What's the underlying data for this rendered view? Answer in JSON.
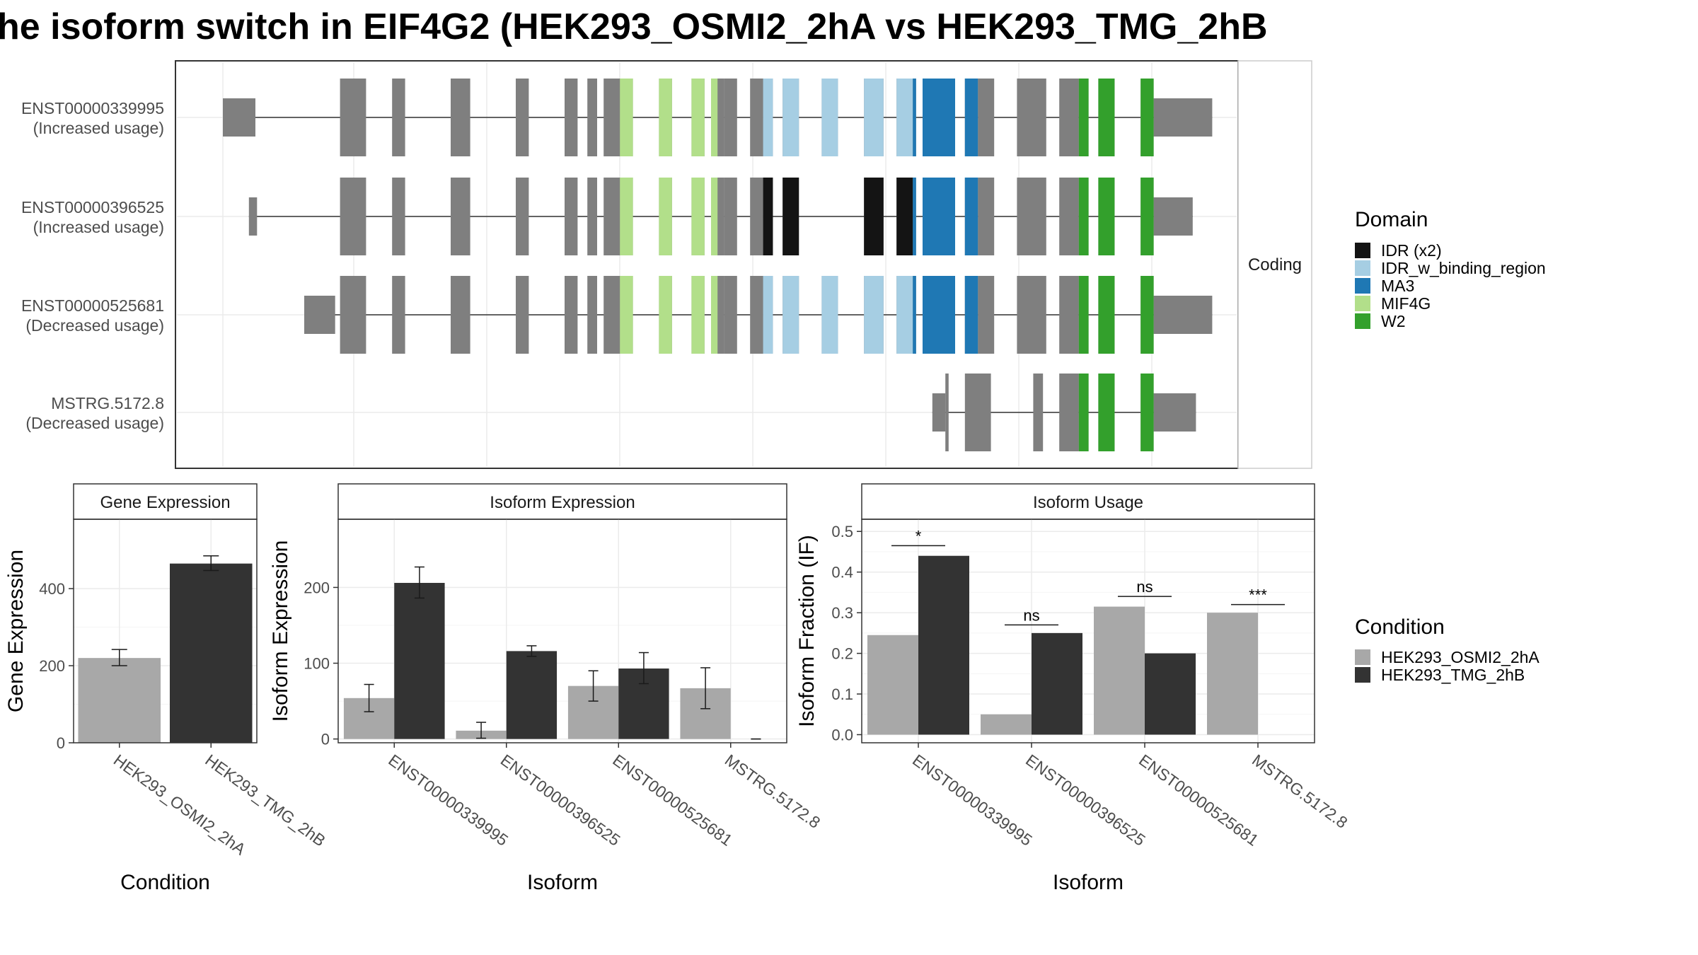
{
  "title": "he isoform switch in EIF4G2 (HEK293_OSMI2_2hA vs HEK293_TMG_2hB",
  "colors": {
    "IDR": "#141414",
    "IDR_w": "#A6CEE3",
    "MA3": "#1F78B4",
    "MIF4G": "#B2DF8A",
    "W2": "#33A02C",
    "exon": "#7F7F7F",
    "cond_A": "#A8A8A8",
    "cond_B": "#333333"
  },
  "structure": {
    "strip_label": "Coding",
    "transcripts": [
      {
        "name": "ENST00000339995",
        "usage": "(Increased usage)",
        "exons": [
          [
            0,
            1,
            "utr"
          ],
          [
            3.6,
            4.4,
            "cds"
          ],
          [
            5.2,
            5.6,
            "cds"
          ],
          [
            7,
            7.6,
            "cds"
          ],
          [
            9,
            9.4,
            "cds"
          ],
          [
            10.5,
            10.9,
            "cds"
          ],
          [
            11.2,
            11.5,
            "cds"
          ],
          [
            11.7,
            12,
            "cds"
          ],
          [
            12,
            12.6,
            "cds"
          ],
          [
            13.4,
            13.8,
            "cds"
          ],
          [
            14.4,
            14.8,
            "cds"
          ],
          [
            15,
            15.4,
            "cds"
          ],
          [
            15.4,
            15.8,
            "cds"
          ],
          [
            16.2,
            16.6,
            "cds"
          ],
          [
            16.6,
            16.9,
            "cds"
          ],
          [
            17.2,
            17.7,
            "cds"
          ],
          [
            18.4,
            18.9,
            "cds"
          ],
          [
            19.7,
            20.3,
            "cds"
          ],
          [
            20.7,
            21.2,
            "cds"
          ],
          [
            21.2,
            21.3,
            "cds"
          ],
          [
            21.5,
            22.5,
            "cds"
          ],
          [
            22.8,
            23.2,
            "cds"
          ],
          [
            23.2,
            23.7,
            "cds"
          ],
          [
            24.4,
            25.3,
            "cds"
          ],
          [
            25.7,
            26.3,
            "cds"
          ],
          [
            26.3,
            26.6,
            "cds"
          ],
          [
            26.9,
            27.4,
            "cds"
          ],
          [
            28.2,
            28.6,
            "cds"
          ],
          [
            28.6,
            30.4,
            "utr"
          ]
        ],
        "domains": [
          [
            12.2,
            12.6,
            "MIF4G"
          ],
          [
            13.4,
            13.8,
            "MIF4G"
          ],
          [
            14.4,
            14.8,
            "MIF4G"
          ],
          [
            15,
            15.2,
            "MIF4G"
          ],
          [
            16.6,
            16.9,
            "IDR_w"
          ],
          [
            17.2,
            17.7,
            "IDR_w"
          ],
          [
            18.4,
            18.9,
            "IDR_w"
          ],
          [
            19.7,
            20.3,
            "IDR_w"
          ],
          [
            20.7,
            21.2,
            "IDR_w"
          ],
          [
            21.2,
            21.3,
            "MA3"
          ],
          [
            21.5,
            22.5,
            "MA3"
          ],
          [
            22.8,
            23.2,
            "MA3"
          ],
          [
            26.3,
            26.6,
            "W2"
          ],
          [
            26.9,
            27.4,
            "W2"
          ],
          [
            28.2,
            28.6,
            "W2"
          ]
        ]
      },
      {
        "name": "ENST00000396525",
        "usage": "(Increased usage)",
        "exons": [
          [
            0.8,
            1.05,
            "utr"
          ],
          [
            3.6,
            4.4,
            "cds"
          ],
          [
            5.2,
            5.6,
            "cds"
          ],
          [
            7,
            7.6,
            "cds"
          ],
          [
            9,
            9.4,
            "cds"
          ],
          [
            10.5,
            10.9,
            "cds"
          ],
          [
            11.2,
            11.5,
            "cds"
          ],
          [
            11.7,
            12,
            "cds"
          ],
          [
            12,
            12.6,
            "cds"
          ],
          [
            13.4,
            13.8,
            "cds"
          ],
          [
            14.4,
            14.8,
            "cds"
          ],
          [
            15,
            15.4,
            "cds"
          ],
          [
            15.4,
            15.8,
            "cds"
          ],
          [
            16.2,
            16.6,
            "cds"
          ],
          [
            16.6,
            16.9,
            "cds"
          ],
          [
            17.2,
            17.7,
            "cds"
          ],
          [
            19.7,
            20.3,
            "cds"
          ],
          [
            20.7,
            21.2,
            "cds"
          ],
          [
            21.2,
            21.3,
            "cds"
          ],
          [
            21.5,
            22.5,
            "cds"
          ],
          [
            22.8,
            23.2,
            "cds"
          ],
          [
            23.2,
            23.7,
            "cds"
          ],
          [
            24.4,
            25.3,
            "cds"
          ],
          [
            25.7,
            26.3,
            "cds"
          ],
          [
            26.3,
            26.6,
            "cds"
          ],
          [
            26.9,
            27.4,
            "cds"
          ],
          [
            28.2,
            28.6,
            "cds"
          ],
          [
            28.6,
            29.8,
            "utr"
          ]
        ],
        "domains": [
          [
            12.2,
            12.6,
            "MIF4G"
          ],
          [
            13.4,
            13.8,
            "MIF4G"
          ],
          [
            14.4,
            14.8,
            "MIF4G"
          ],
          [
            15,
            15.2,
            "MIF4G"
          ],
          [
            16.6,
            16.9,
            "IDR"
          ],
          [
            17.2,
            17.7,
            "IDR"
          ],
          [
            19.7,
            20.3,
            "IDR"
          ],
          [
            20.7,
            21.2,
            "IDR"
          ],
          [
            21.2,
            21.3,
            "MA3"
          ],
          [
            21.5,
            22.5,
            "MA3"
          ],
          [
            22.8,
            23.2,
            "MA3"
          ],
          [
            26.3,
            26.6,
            "W2"
          ],
          [
            26.9,
            27.4,
            "W2"
          ],
          [
            28.2,
            28.6,
            "W2"
          ]
        ]
      },
      {
        "name": "ENST00000525681",
        "usage": "(Decreased usage)",
        "exons": [
          [
            2.5,
            3.45,
            "utr"
          ],
          [
            3.6,
            4.4,
            "cds"
          ],
          [
            5.2,
            5.6,
            "cds"
          ],
          [
            7,
            7.6,
            "cds"
          ],
          [
            9,
            9.4,
            "cds"
          ],
          [
            10.5,
            10.9,
            "cds"
          ],
          [
            11.2,
            11.5,
            "cds"
          ],
          [
            11.7,
            12,
            "cds"
          ],
          [
            12,
            12.6,
            "cds"
          ],
          [
            13.4,
            13.8,
            "cds"
          ],
          [
            14.4,
            14.8,
            "cds"
          ],
          [
            15,
            15.4,
            "cds"
          ],
          [
            15.4,
            15.8,
            "cds"
          ],
          [
            16.2,
            16.6,
            "cds"
          ],
          [
            16.6,
            16.9,
            "cds"
          ],
          [
            17.2,
            17.7,
            "cds"
          ],
          [
            18.4,
            18.9,
            "cds"
          ],
          [
            19.7,
            20.3,
            "cds"
          ],
          [
            20.7,
            21.2,
            "cds"
          ],
          [
            21.2,
            21.3,
            "cds"
          ],
          [
            21.5,
            22.5,
            "cds"
          ],
          [
            22.8,
            23.2,
            "cds"
          ],
          [
            23.2,
            23.7,
            "cds"
          ],
          [
            24.4,
            25.3,
            "cds"
          ],
          [
            25.7,
            26.3,
            "cds"
          ],
          [
            26.3,
            26.6,
            "cds"
          ],
          [
            26.9,
            27.4,
            "cds"
          ],
          [
            28.2,
            28.6,
            "cds"
          ],
          [
            28.6,
            30.4,
            "utr"
          ]
        ],
        "domains": [
          [
            12.2,
            12.6,
            "MIF4G"
          ],
          [
            13.4,
            13.8,
            "MIF4G"
          ],
          [
            14.4,
            14.8,
            "MIF4G"
          ],
          [
            15,
            15.2,
            "MIF4G"
          ],
          [
            16.6,
            16.9,
            "IDR_w"
          ],
          [
            17.2,
            17.7,
            "IDR_w"
          ],
          [
            18.4,
            18.9,
            "IDR_w"
          ],
          [
            19.7,
            20.3,
            "IDR_w"
          ],
          [
            20.7,
            21.2,
            "IDR_w"
          ],
          [
            21.2,
            21.3,
            "MA3"
          ],
          [
            21.5,
            22.5,
            "MA3"
          ],
          [
            22.8,
            23.2,
            "MA3"
          ],
          [
            26.3,
            26.6,
            "W2"
          ],
          [
            26.9,
            27.4,
            "W2"
          ],
          [
            28.2,
            28.6,
            "W2"
          ]
        ]
      },
      {
        "name": "MSTRG.5172.8",
        "usage": "(Decreased usage)",
        "exons": [
          [
            21.8,
            22.2,
            "utr"
          ],
          [
            22.2,
            22.3,
            "cds"
          ],
          [
            22.8,
            23.6,
            "cds"
          ],
          [
            24.9,
            25.2,
            "cds"
          ],
          [
            25.7,
            26.3,
            "cds"
          ],
          [
            26.3,
            26.6,
            "cds"
          ],
          [
            26.9,
            27.4,
            "cds"
          ],
          [
            28.2,
            28.6,
            "cds"
          ],
          [
            28.6,
            29.9,
            "utr"
          ]
        ],
        "domains": [
          [
            26.3,
            26.6,
            "W2"
          ],
          [
            26.9,
            27.4,
            "W2"
          ],
          [
            28.2,
            28.6,
            "W2"
          ]
        ]
      }
    ]
  },
  "legend_domain": {
    "title": "Domain",
    "items": [
      {
        "label": "IDR (x2)",
        "key": "IDR"
      },
      {
        "label": "IDR_w_binding_region",
        "key": "IDR_w"
      },
      {
        "label": "MA3",
        "key": "MA3"
      },
      {
        "label": "MIF4G",
        "key": "MIF4G"
      },
      {
        "label": "W2",
        "key": "W2"
      }
    ]
  },
  "legend_condition": {
    "title": "Condition",
    "items": [
      {
        "label": "HEK293_OSMI2_2hA",
        "key": "cond_A"
      },
      {
        "label": "HEK293_TMG_2hB",
        "key": "cond_B"
      }
    ]
  },
  "chart_data": [
    {
      "type": "bar",
      "title": "Gene Expression",
      "xlabel": "Condition",
      "ylabel": "Gene Expression",
      "ylim": [
        0,
        580
      ],
      "yticks": [
        0,
        200,
        400
      ],
      "categories": [
        "HEK293_OSMI2_2hA",
        "HEK293_TMG_2hB"
      ],
      "values": [
        220,
        465
      ],
      "errors": [
        [
          200,
          242
        ],
        [
          447,
          485
        ]
      ]
    },
    {
      "type": "bar",
      "title": "Isoform Expression",
      "xlabel": "Isoform",
      "ylabel": "Isoform Expression",
      "ylim": [
        -5,
        290
      ],
      "yticks": [
        0,
        100,
        200
      ],
      "categories": [
        "ENST00000339995",
        "ENST00000396525",
        "ENST00000525681",
        "MSTRG.5172.8"
      ],
      "series": [
        {
          "key": "cond_A",
          "values": [
            54,
            11,
            70,
            67
          ],
          "errors": [
            [
              36,
              72
            ],
            [
              1,
              22
            ],
            [
              50,
              90
            ],
            [
              40,
              94
            ]
          ]
        },
        {
          "key": "cond_B",
          "values": [
            206,
            116,
            93,
            0
          ],
          "errors": [
            [
              186,
              227
            ],
            [
              109,
              123
            ],
            [
              73,
              114
            ],
            [
              0,
              0
            ]
          ]
        }
      ]
    },
    {
      "type": "bar",
      "title": "Isoform Usage",
      "xlabel": "Isoform",
      "ylabel": "Isoform Fraction (IF)",
      "ylim": [
        -0.02,
        0.53
      ],
      "yticks": [
        0.0,
        0.1,
        0.2,
        0.3,
        0.4,
        0.5
      ],
      "categories": [
        "ENST00000339995",
        "ENST00000396525",
        "ENST00000525681",
        "MSTRG.5172.8"
      ],
      "series": [
        {
          "key": "cond_A",
          "values": [
            0.245,
            0.05,
            0.315,
            0.3
          ]
        },
        {
          "key": "cond_B",
          "values": [
            0.44,
            0.25,
            0.2,
            0.0
          ]
        }
      ],
      "significance": [
        "*",
        "ns",
        "ns",
        "***"
      ],
      "sig_y": [
        0.465,
        0.27,
        0.34,
        0.32
      ]
    }
  ]
}
